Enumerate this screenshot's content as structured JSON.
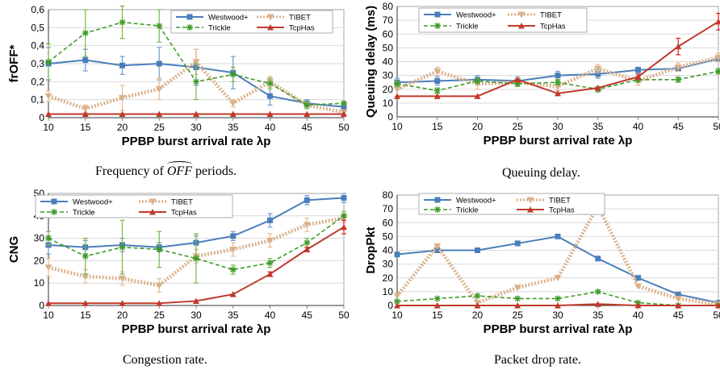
{
  "legend_names": [
    "Westwood+",
    "TIBET",
    "Trickle",
    "TcpHas"
  ],
  "series_colors": {
    "Westwood+": "#4a7ebb",
    "TIBET": "#d9b28c",
    "Trickle": "#3f9b2a",
    "TcpHas": "#c0392b"
  },
  "chart_data": [
    {
      "type": "line",
      "ylabel": "frOFF*",
      "xlabel": "PPBP burst arrival  rate λp",
      "caption_before": "Frequency of ",
      "caption_math": "OFF",
      "caption_after": " periods.",
      "x": [
        10,
        15,
        20,
        25,
        30,
        35,
        40,
        45,
        50
      ],
      "xlim": [
        10,
        50
      ],
      "ylim": [
        0,
        0.6
      ],
      "yticks": [
        "0",
        "0,1",
        "0,2",
        "0,3",
        "0,4",
        "0,5",
        "0,6"
      ],
      "grid": true,
      "legend_position": "top-right",
      "series": [
        {
          "name": "Westwood+",
          "values": [
            0.3,
            0.32,
            0.29,
            0.3,
            0.28,
            0.25,
            0.12,
            0.08,
            0.06
          ],
          "err": [
            0.09,
            0.06,
            0.05,
            0.09,
            0.1,
            0.09,
            0.05,
            0.02,
            0.02
          ]
        },
        {
          "name": "TIBET",
          "values": [
            0.12,
            0.05,
            0.11,
            0.16,
            0.31,
            0.08,
            0.2,
            0.07,
            0.03
          ],
          "err": [
            0.03,
            0.02,
            0.07,
            0.06,
            0.07,
            0.02,
            0.03,
            0.02,
            0.01
          ]
        },
        {
          "name": "Trickle",
          "values": [
            0.31,
            0.47,
            0.53,
            0.51,
            0.2,
            0.24,
            0.19,
            0.07,
            0.08
          ],
          "err": [
            0.1,
            0.13,
            0.09,
            0.09,
            0.1,
            0.04,
            0.03,
            0.02,
            0.01
          ]
        },
        {
          "name": "TcpHas",
          "values": [
            0.02,
            0.02,
            0.02,
            0.02,
            0.02,
            0.02,
            0.02,
            0.02,
            0.02
          ],
          "err": [
            0,
            0,
            0,
            0,
            0,
            0,
            0,
            0,
            0
          ]
        }
      ]
    },
    {
      "type": "line",
      "ylabel": "Queuing delay (ms)",
      "xlabel": "PPBP burst arrival  rate λp",
      "caption_before": "Queuing delay.",
      "caption_math": "",
      "caption_after": "",
      "x": [
        10,
        15,
        20,
        25,
        30,
        35,
        40,
        45,
        50
      ],
      "xlim": [
        10,
        50
      ],
      "ylim": [
        0,
        80
      ],
      "yticks": [
        "0",
        "10",
        "20",
        "30",
        "40",
        "50",
        "60",
        "70",
        "80"
      ],
      "grid": true,
      "legend_position": "top-left",
      "series": [
        {
          "name": "Westwood+",
          "values": [
            25,
            26,
            27,
            26,
            30,
            31,
            34,
            35,
            42
          ],
          "err": [
            3,
            3,
            3,
            3,
            3,
            3,
            2,
            2,
            2
          ]
        },
        {
          "name": "TIBET",
          "values": [
            20,
            33,
            24,
            25,
            22,
            35,
            26,
            36,
            43
          ],
          "err": [
            5,
            3,
            4,
            3,
            3,
            3,
            3,
            3,
            3
          ]
        },
        {
          "name": "Trickle",
          "values": [
            24,
            19,
            26,
            24,
            25,
            20,
            27,
            27,
            33
          ],
          "err": [
            2,
            2,
            2,
            2,
            2,
            2,
            2,
            2,
            2
          ]
        },
        {
          "name": "TcpHas",
          "values": [
            15,
            15,
            15,
            27,
            17,
            21,
            29,
            51,
            69
          ],
          "err": [
            0,
            0,
            0,
            0,
            0,
            0,
            2,
            6,
            6
          ]
        }
      ]
    },
    {
      "type": "line",
      "ylabel": "CNG",
      "xlabel": "PPBP burst arrival  rate λp",
      "caption_before": "Congestion rate.",
      "caption_math": "",
      "caption_after": "",
      "x": [
        10,
        15,
        20,
        25,
        30,
        35,
        40,
        45,
        50
      ],
      "xlim": [
        10,
        50
      ],
      "ylim": [
        0,
        50
      ],
      "yticks": [
        "0",
        "10",
        "20",
        "30",
        "40",
        "50"
      ],
      "grid": true,
      "legend_position": "top",
      "series": [
        {
          "name": "Westwood+",
          "values": [
            27,
            26,
            27,
            26,
            28,
            31,
            38,
            47,
            48
          ],
          "err": [
            4,
            3,
            3,
            2,
            3,
            2,
            3,
            2,
            2
          ]
        },
        {
          "name": "TIBET",
          "values": [
            17,
            13,
            12,
            9,
            22,
            25,
            29,
            36,
            39
          ],
          "err": [
            4,
            3,
            3,
            3,
            3,
            3,
            3,
            3,
            2
          ]
        },
        {
          "name": "Trickle",
          "values": [
            30,
            22,
            26,
            25,
            21,
            16,
            19,
            28,
            40
          ],
          "err": [
            3,
            8,
            12,
            8,
            11,
            2,
            2,
            2,
            2
          ]
        },
        {
          "name": "TcpHas",
          "values": [
            1,
            1,
            1,
            1,
            2,
            5,
            14,
            25,
            35
          ],
          "err": [
            0,
            0,
            0,
            0,
            0,
            0,
            1,
            1,
            3
          ]
        }
      ]
    },
    {
      "type": "line",
      "ylabel": "DropPkt",
      "xlabel": "PPBP burst arrival  rate λp",
      "caption_before": "Packet drop rate.",
      "caption_math": "",
      "caption_after": "",
      "x": [
        10,
        15,
        20,
        25,
        30,
        35,
        40,
        45,
        50
      ],
      "xlim": [
        10,
        50
      ],
      "ylim": [
        0,
        80
      ],
      "yticks": [
        "0",
        "10",
        "20",
        "30",
        "40",
        "50",
        "60",
        "70",
        "80"
      ],
      "grid": true,
      "legend_position": "top",
      "series": [
        {
          "name": "Westwood+",
          "values": [
            37,
            40,
            40,
            45,
            50,
            34,
            20,
            8,
            2
          ],
          "err": [
            0,
            0,
            0,
            0,
            0,
            0,
            0,
            0,
            0
          ]
        },
        {
          "name": "TIBET",
          "values": [
            7,
            43,
            2,
            13,
            20,
            72,
            14,
            5,
            1
          ],
          "err": [
            0,
            0,
            0,
            0,
            0,
            0,
            0,
            0,
            0
          ]
        },
        {
          "name": "Trickle",
          "values": [
            3,
            5,
            7,
            5,
            5,
            10,
            2,
            0,
            0
          ],
          "err": [
            0,
            0,
            0,
            0,
            0,
            0,
            0,
            0,
            0
          ]
        },
        {
          "name": "TcpHas",
          "values": [
            0,
            0,
            0,
            0,
            0,
            1,
            0,
            0,
            0
          ],
          "err": [
            0,
            0,
            0,
            0,
            0,
            0,
            0,
            0,
            0
          ]
        }
      ]
    }
  ]
}
